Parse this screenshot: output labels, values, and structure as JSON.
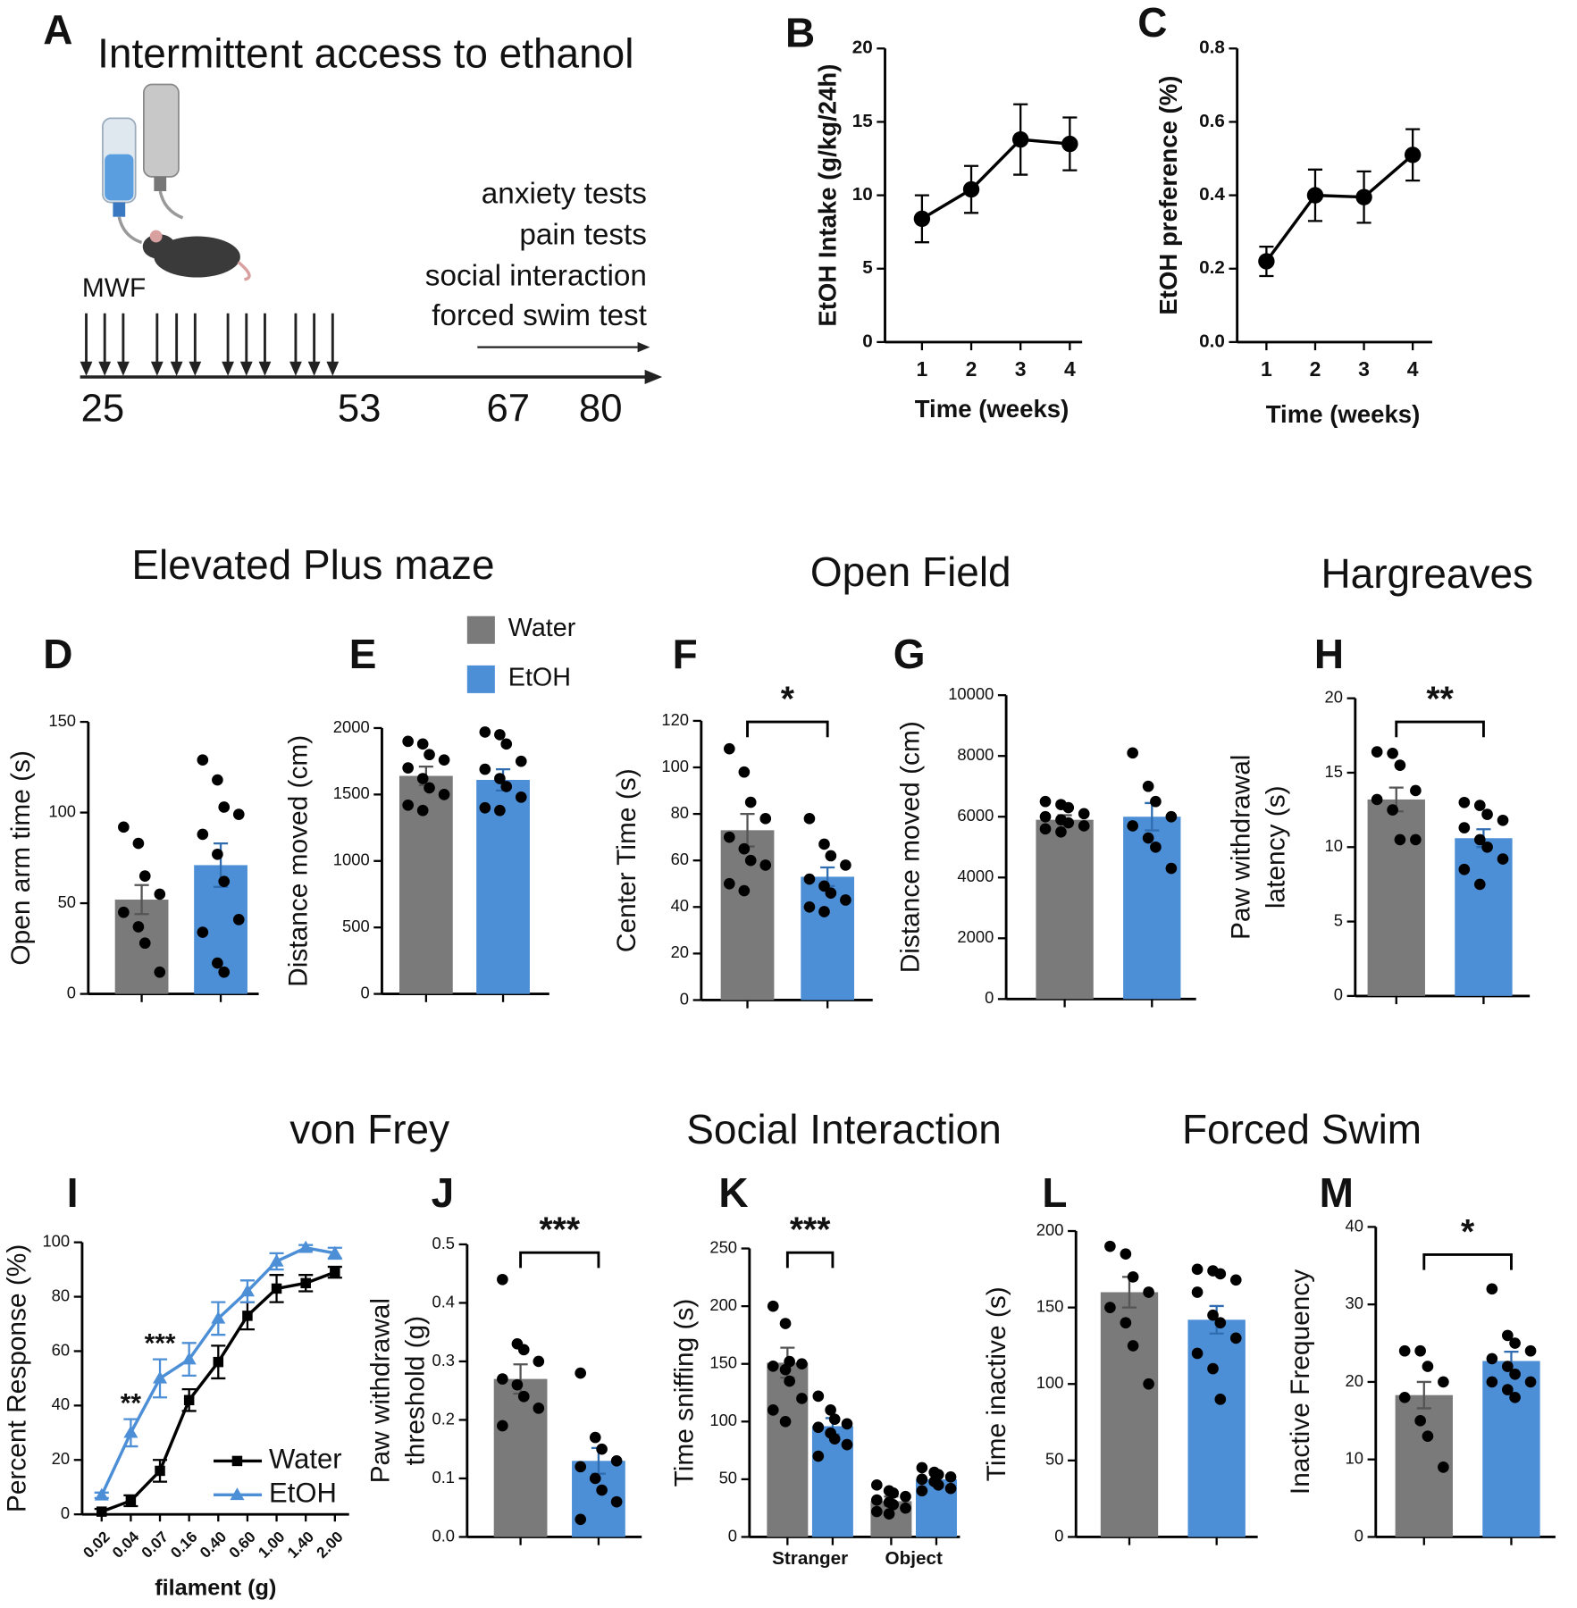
{
  "timeline": {
    "panel": "A",
    "title": "Intermittent access to ethanol",
    "schedule": "MWF",
    "days": [
      25,
      53,
      67,
      80
    ],
    "tests": [
      "anxiety tests",
      "pain tests",
      "social interaction",
      "forced swim test"
    ]
  },
  "section_titles": [
    "Elevated Plus maze",
    "Open Field",
    "Hargreaves",
    "von Frey",
    "Social  Interaction",
    "Forced Swim"
  ],
  "chart_data": [
    {
      "type": "line",
      "panel": "B",
      "y_label": "EtOH Intake (g/kg/24h)",
      "x_label": "Time (weeks)",
      "x": [
        1,
        2,
        3,
        4
      ],
      "xlim": [
        0.25,
        4.25
      ],
      "xticks": [
        1,
        2,
        3,
        4
      ],
      "ylim": [
        0,
        20
      ],
      "yticks": [
        0,
        5,
        10,
        15,
        20
      ],
      "series": [
        {
          "color": "#000000",
          "values": [
            8.4,
            10.4,
            13.8,
            13.5
          ],
          "errors": [
            1.6,
            1.6,
            2.4,
            1.8
          ]
        }
      ]
    },
    {
      "type": "line",
      "panel": "C",
      "y_label": "EtOH preference (%)",
      "x_label": "Time (weeks)",
      "x": [
        1,
        2,
        3,
        4
      ],
      "xlim": [
        0.4,
        4.4
      ],
      "xticks": [
        1,
        2,
        3,
        4
      ],
      "ylim": [
        0,
        0.8
      ],
      "yticks": [
        {
          "value": 0,
          "label": "0.0"
        },
        0.2,
        0.4,
        0.6,
        0.8
      ],
      "series": [
        {
          "color": "#000000",
          "values": [
            0.22,
            0.4,
            0.395,
            0.51
          ],
          "errors": [
            0.04,
            0.07,
            0.07,
            0.07
          ]
        }
      ]
    },
    {
      "type": "bar",
      "panel": "D",
      "y_label": "Open arm time  (s)",
      "categories": [
        null
      ],
      "ylim": [
        0,
        150
      ],
      "yticks": [
        0,
        50,
        100,
        150
      ],
      "series": [
        {
          "color": "#7a7a7a",
          "values": [
            52
          ],
          "errors": [
            8
          ],
          "points": [
            [
              92,
              83,
              65,
              55,
              45,
              37,
              28,
              12
            ]
          ]
        },
        {
          "color": "#4d8fd6",
          "values": [
            71
          ],
          "errors": [
            12
          ],
          "points": [
            [
              129,
              118,
              103,
              99,
              88,
              77,
              62,
              41,
              34,
              17,
              12
            ]
          ]
        }
      ]
    },
    {
      "type": "bar",
      "panel": "E",
      "y_label": "Distance moved (cm)",
      "categories": [
        null
      ],
      "ylim": [
        0,
        2000
      ],
      "yticks": [
        0,
        500,
        1000,
        1500,
        2000
      ],
      "series": [
        {
          "name": "Water",
          "color": "#7a7a7a",
          "values": [
            1640
          ],
          "errors": [
            70
          ],
          "points": [
            [
              1900,
              1880,
              1800,
              1760,
              1700,
              1620,
              1550,
              1500,
              1420,
              1380
            ]
          ]
        },
        {
          "name": "EtOH",
          "color": "#4d8fd6",
          "values": [
            1610
          ],
          "errors": [
            80
          ],
          "points": [
            [
              1970,
              1950,
              1880,
              1750,
              1690,
              1620,
              1560,
              1480,
              1400,
              1380
            ]
          ]
        }
      ]
    },
    {
      "type": "bar",
      "panel": "F",
      "y_label": "Center Time  (s)",
      "categories": [
        null
      ],
      "significance": "*",
      "ylim": [
        0,
        120
      ],
      "yticks": [
        0,
        20,
        40,
        60,
        80,
        100,
        120
      ],
      "series": [
        {
          "color": "#7a7a7a",
          "values": [
            73
          ],
          "errors": [
            7
          ],
          "points": [
            [
              108,
              98,
              85,
              78,
              70,
              65,
              60,
              58,
              50,
              47
            ]
          ]
        },
        {
          "color": "#4d8fd6",
          "values": [
            53
          ],
          "errors": [
            4
          ],
          "points": [
            [
              78,
              67,
              62,
              58,
              52,
              49,
              46,
              43,
              40,
              38
            ]
          ]
        }
      ]
    },
    {
      "type": "bar",
      "panel": "G",
      "y_label": "Distance moved (cm)",
      "categories": [
        null
      ],
      "ylim": [
        0,
        10000
      ],
      "yticks": [
        0,
        2000,
        4000,
        6000,
        8000,
        10000
      ],
      "series": [
        {
          "color": "#7a7a7a",
          "values": [
            5900
          ],
          "errors": [
            150
          ],
          "points": [
            [
              6500,
              6400,
              6300,
              6100,
              6000,
              5900,
              5800,
              5700,
              5600,
              5500
            ]
          ]
        },
        {
          "color": "#4d8fd6",
          "values": [
            6000
          ],
          "errors": [
            450
          ],
          "points": [
            [
              8100,
              7000,
              6500,
              6000,
              5700,
              5300,
              5000,
              4300
            ]
          ]
        }
      ]
    },
    {
      "type": "bar",
      "panel": "H",
      "y_label": [
        "Paw withdrawal",
        "latency (s)"
      ],
      "categories": [
        null
      ],
      "significance": "**",
      "ylim": [
        0,
        20
      ],
      "yticks": [
        0,
        5,
        10,
        15,
        20
      ],
      "series": [
        {
          "color": "#7a7a7a",
          "values": [
            13.2
          ],
          "errors": [
            0.8
          ],
          "points": [
            [
              16.4,
              16.3,
              15.5,
              13.8,
              13.2,
              12.5,
              10.5,
              10.5
            ]
          ]
        },
        {
          "color": "#4d8fd6",
          "values": [
            10.6
          ],
          "errors": [
            0.6
          ],
          "points": [
            [
              13,
              12.8,
              12.2,
              11.8,
              11.3,
              10.5,
              10,
              9.2,
              8.5,
              7.5
            ]
          ]
        }
      ]
    },
    {
      "type": "line",
      "panel": "I",
      "y_label": "Percent Response (%)",
      "x_label": "filament (g)",
      "categories": [
        "0.02",
        "0.04",
        "0.07",
        "0.16",
        "0.40",
        "0.60",
        "1.00",
        "1.40",
        "2.00"
      ],
      "significance": [
        null,
        "**",
        "***",
        null,
        null,
        null,
        null,
        null,
        null
      ],
      "ylim": [
        0,
        100
      ],
      "yticks": [
        0,
        20,
        40,
        60,
        80,
        100
      ],
      "series": [
        {
          "name": "Water",
          "color": "#000000",
          "values": [
            1,
            5,
            16,
            42,
            56,
            73,
            83,
            85,
            89
          ],
          "errors": [
            1,
            2,
            4,
            4,
            6,
            5,
            5,
            3,
            2
          ]
        },
        {
          "name": "EtOH",
          "color": "#4d8fd6",
          "values": [
            7,
            30,
            50,
            57,
            72,
            82,
            93,
            98,
            96
          ],
          "errors": [
            1,
            5,
            7,
            6,
            6,
            4,
            3,
            1,
            2
          ]
        }
      ]
    },
    {
      "type": "bar",
      "panel": "J",
      "y_label": [
        "Paw withdrawal",
        "threshold (g)"
      ],
      "categories": [
        null
      ],
      "significance": "***",
      "ylim": [
        0,
        0.5
      ],
      "yticks": [
        {
          "value": 0,
          "label": "0.0"
        },
        0.1,
        0.2,
        0.3,
        0.4,
        0.5
      ],
      "series": [
        {
          "color": "#7a7a7a",
          "values": [
            0.27
          ],
          "errors": [
            0.025
          ],
          "points": [
            [
              0.44,
              0.33,
              0.32,
              0.3,
              0.27,
              0.26,
              0.24,
              0.22,
              0.19
            ]
          ]
        },
        {
          "color": "#4d8fd6",
          "values": [
            0.13
          ],
          "errors": [
            0.022
          ],
          "points": [
            [
              0.28,
              0.17,
              0.15,
              0.13,
              0.12,
              0.1,
              0.08,
              0.06,
              0.03
            ]
          ]
        }
      ]
    },
    {
      "type": "bar",
      "panel": "K",
      "y_label": "Time sniffing (s)",
      "categories": [
        "Stranger",
        "Object"
      ],
      "significance": "***",
      "ylim": [
        0,
        250
      ],
      "yticks": [
        0,
        50,
        100,
        150,
        200,
        250
      ],
      "series": [
        {
          "color": "#7a7a7a",
          "values": [
            151,
            31
          ],
          "errors": [
            13,
            4
          ],
          "points": [
            [
              200,
              185,
              152,
              150,
              148,
              145,
              135,
              120,
              110,
              100
            ],
            [
              45,
              40,
              38,
              35,
              32,
              30,
              28,
              25,
              22,
              20
            ]
          ]
        },
        {
          "color": "#4d8fd6",
          "values": [
            96,
            50
          ],
          "errors": [
            7,
            4
          ],
          "points": [
            [
              122,
              110,
              102,
              98,
              95,
              90,
              85,
              80,
              70
            ],
            [
              60,
              56,
              54,
              52,
              50,
              48,
              45,
              42,
              40
            ]
          ]
        }
      ]
    },
    {
      "type": "bar",
      "panel": "L",
      "y_label": "Time inactive (s)",
      "categories": [
        null
      ],
      "ylim": [
        0,
        200
      ],
      "yticks": [
        0,
        50,
        100,
        150,
        200
      ],
      "series": [
        {
          "color": "#7a7a7a",
          "values": [
            160
          ],
          "errors": [
            10
          ],
          "points": [
            [
              190,
              185,
              170,
              160,
              150,
              140,
              125,
              100
            ]
          ]
        },
        {
          "color": "#4d8fd6",
          "values": [
            142
          ],
          "errors": [
            9
          ],
          "points": [
            [
              175,
              174,
              172,
              168,
              160,
              145,
              140,
              130,
              120,
              110,
              90
            ]
          ]
        }
      ]
    },
    {
      "type": "bar",
      "panel": "M",
      "y_label": "Inactive Frequency",
      "categories": [
        null
      ],
      "significance": "*",
      "ylim": [
        0,
        40
      ],
      "yticks": [
        0,
        10,
        20,
        30,
        40
      ],
      "series": [
        {
          "color": "#7a7a7a",
          "values": [
            18.3
          ],
          "errors": [
            1.7
          ],
          "points": [
            [
              24,
              24,
              22,
              20,
              18,
              15,
              13,
              9
            ]
          ]
        },
        {
          "color": "#4d8fd6",
          "values": [
            22.7
          ],
          "errors": [
            1.2
          ],
          "points": [
            [
              32,
              26,
              25,
              24,
              23,
              22,
              21,
              20,
              20,
              19,
              18
            ]
          ]
        }
      ]
    }
  ]
}
